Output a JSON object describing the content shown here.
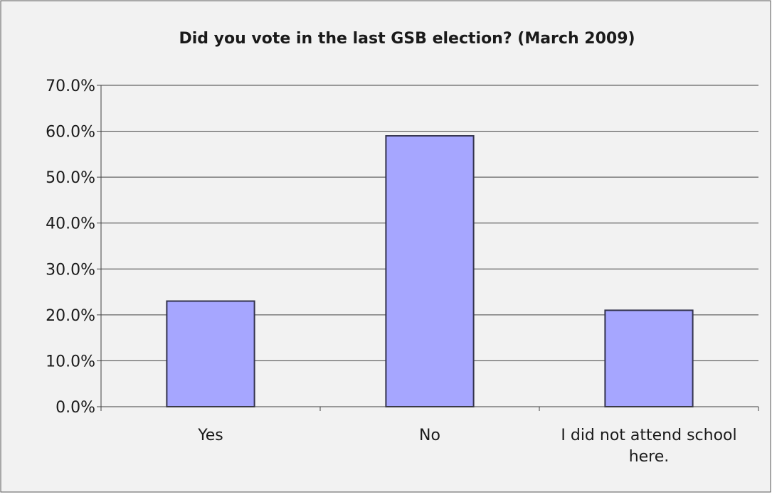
{
  "chart_data": {
    "type": "bar",
    "title": "Did you vote in the last GSB election?  (March 2009)",
    "xlabel": "",
    "ylabel": "",
    "categories": [
      "Yes",
      "No",
      "I did not attend school here."
    ],
    "category_lines": [
      [
        "Yes"
      ],
      [
        "No"
      ],
      [
        "I did not attend school",
        "here."
      ]
    ],
    "values": [
      23.0,
      59.0,
      21.0
    ],
    "ylim": [
      0,
      70
    ],
    "ytick_step": 10,
    "ytick_labels": [
      "0.0%",
      "10.0%",
      "20.0%",
      "30.0%",
      "40.0%",
      "50.0%",
      "60.0%",
      "70.0%"
    ],
    "grid": true,
    "legend": "none"
  },
  "colors": {
    "background": "#f2f2f2",
    "bar_fill": "#a6a6ff",
    "bar_stroke": "#33334d",
    "grid": "#404040",
    "text": "#1a1a1a",
    "frame": "#555555"
  }
}
